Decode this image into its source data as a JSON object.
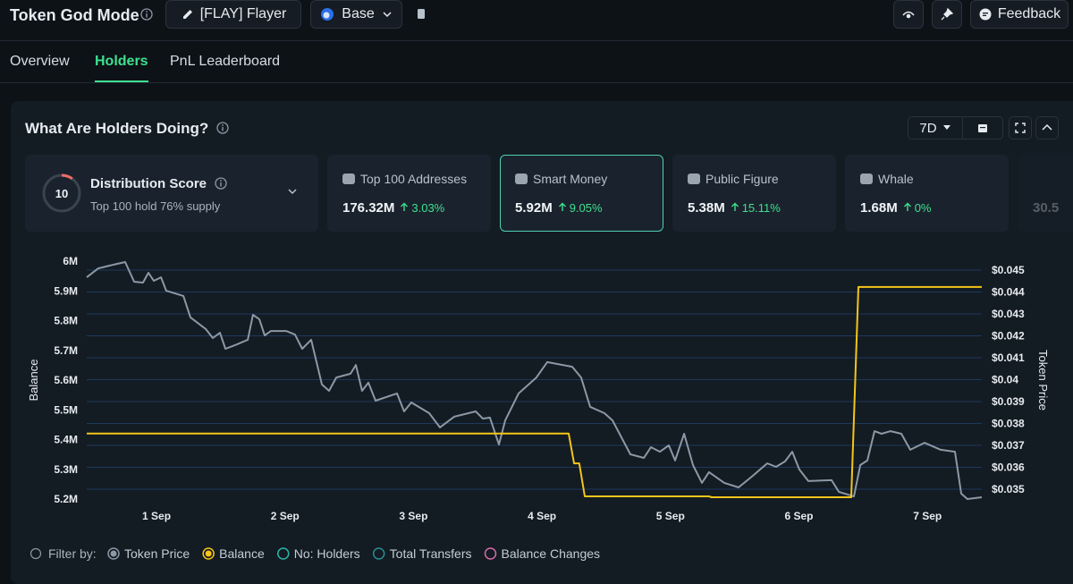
{
  "header": {
    "title": "Token God Mode",
    "token": "[FLAY] Flayer",
    "chain": "Base",
    "feedback": "Feedback"
  },
  "tabs": {
    "items": [
      "Overview",
      "Holders",
      "PnL Leaderboard"
    ],
    "active": 1
  },
  "panel": {
    "title": "What Are Holders Doing?",
    "range": "7D"
  },
  "score": {
    "value": 10,
    "title": "Distribution Score",
    "subtitle": "Top 100 hold 76% supply"
  },
  "cards": [
    {
      "label": "Top 100 Addresses",
      "value": "176.32M",
      "change": "3.03%"
    },
    {
      "label": "Smart Money",
      "value": "5.92M",
      "change": "9.05%"
    },
    {
      "label": "Public Figure",
      "value": "5.38M",
      "change": "15.11%"
    },
    {
      "label": "Whale",
      "value": "1.68M",
      "change": "0%"
    },
    {
      "value": "30.5"
    }
  ],
  "selected_card": 1,
  "chart_data": {
    "type": "line",
    "ylabel": "Balance",
    "y2label": "Token Price",
    "xlim": [
      0.457,
      7.423
    ],
    "xticks": [
      {
        "value": 1,
        "label": "1 Sep"
      },
      {
        "value": 2,
        "label": "2 Sep"
      },
      {
        "value": 3,
        "label": "3 Sep"
      },
      {
        "value": 4,
        "label": "4 Sep"
      },
      {
        "value": 5,
        "label": "5 Sep"
      },
      {
        "value": 6,
        "label": "6 Sep"
      },
      {
        "value": 7,
        "label": "7 Sep"
      }
    ],
    "ylim": [
      5200000,
      6000000
    ],
    "yticks": [
      {
        "value": 5200000,
        "label": "5.2M"
      },
      {
        "value": 5300000,
        "label": "5.3M"
      },
      {
        "value": 5400000,
        "label": "5.4M"
      },
      {
        "value": 5500000,
        "label": "5.5M"
      },
      {
        "value": 5600000,
        "label": "5.6M"
      },
      {
        "value": 5700000,
        "label": "5.7M"
      },
      {
        "value": 5800000,
        "label": "5.8M"
      },
      {
        "value": 5900000,
        "label": "5.9M"
      },
      {
        "value": 6000000,
        "label": "6M"
      }
    ],
    "y2lim": [
      0.03455,
      0.04541
    ],
    "y2ticks": [
      {
        "value": 0.035,
        "label": "$0.035"
      },
      {
        "value": 0.036,
        "label": "$0.036"
      },
      {
        "value": 0.037,
        "label": "$0.037"
      },
      {
        "value": 0.038,
        "label": "$0.038"
      },
      {
        "value": 0.039,
        "label": "$0.039"
      },
      {
        "value": 0.04,
        "label": "$0.04"
      },
      {
        "value": 0.041,
        "label": "$0.041"
      },
      {
        "value": 0.042,
        "label": "$0.042"
      },
      {
        "value": 0.043,
        "label": "$0.043"
      },
      {
        "value": 0.044,
        "label": "$0.044"
      },
      {
        "value": 0.045,
        "label": "$0.045"
      }
    ],
    "grid": true,
    "series": [
      {
        "name": "Token Price",
        "color": "#8c98a5",
        "axis": "y2",
        "x": [
          0.457,
          0.547,
          0.631,
          0.756,
          0.826,
          0.895,
          0.937,
          0.979,
          1.035,
          1.076,
          1.209,
          1.264,
          1.383,
          1.438,
          1.494,
          1.536,
          1.626,
          1.71,
          1.751,
          1.8,
          1.842,
          1.891,
          2.009,
          2.078,
          2.134,
          2.204,
          2.287,
          2.343,
          2.399,
          2.51,
          2.552,
          2.6,
          2.649,
          2.705,
          2.872,
          2.927,
          2.983,
          3.122,
          3.206,
          3.317,
          3.484,
          3.54,
          3.595,
          3.665,
          3.714,
          3.818,
          3.957,
          4.041,
          4.236,
          4.305,
          4.375,
          4.486,
          4.549,
          4.688,
          4.793,
          4.848,
          4.918,
          4.987,
          5.036,
          5.106,
          5.175,
          5.245,
          5.3,
          5.419,
          5.53,
          5.641,
          5.753,
          5.822,
          5.892,
          5.948,
          6.003,
          6.073,
          6.254,
          6.31,
          6.428,
          6.477,
          6.532,
          6.588,
          6.643,
          6.713,
          6.797,
          6.866,
          6.977,
          7.103,
          7.214,
          7.263,
          7.311,
          7.423
        ],
        "values": [
          0.04467,
          0.04508,
          0.0452,
          0.04537,
          0.04447,
          0.04443,
          0.04488,
          0.04451,
          0.04467,
          0.04406,
          0.04382,
          0.04284,
          0.04231,
          0.0419,
          0.04214,
          0.04141,
          0.04161,
          0.04182,
          0.04296,
          0.04276,
          0.04202,
          0.04222,
          0.04222,
          0.04206,
          0.04141,
          0.04182,
          0.03978,
          0.03949,
          0.0401,
          0.04027,
          0.04067,
          0.03949,
          0.03986,
          0.03904,
          0.03937,
          0.03855,
          0.03896,
          0.03847,
          0.03782,
          0.03831,
          0.03855,
          0.03822,
          0.03827,
          0.03704,
          0.03814,
          0.03937,
          0.0401,
          0.0408,
          0.04059,
          0.0401,
          0.03876,
          0.03847,
          0.03814,
          0.03659,
          0.03643,
          0.03692,
          0.03671,
          0.037,
          0.03631,
          0.03753,
          0.0361,
          0.03529,
          0.03578,
          0.03529,
          0.03508,
          0.03561,
          0.03618,
          0.03602,
          0.03627,
          0.03671,
          0.0359,
          0.03537,
          0.03541,
          0.03488,
          0.03467,
          0.0361,
          0.03631,
          0.03765,
          0.03753,
          0.03765,
          0.03753,
          0.0368,
          0.03712,
          0.0368,
          0.03671,
          0.0348,
          0.03455,
          0.03463
        ]
      },
      {
        "name": "Balance",
        "color": "#f5c518",
        "x": [
          0.457,
          4.208,
          4.25,
          4.29,
          4.333,
          5.3,
          5.32,
          6.407,
          6.463,
          7.423
        ],
        "values": [
          5420000,
          5420000,
          5320000,
          5320000,
          5209000,
          5209000,
          5206000,
          5206000,
          5913000,
          5913000
        ]
      }
    ],
    "filter_label": "Filter by:",
    "filters": [
      {
        "name": "No: Holders",
        "color": "#2bb5a8"
      },
      {
        "name": "Total Transfers",
        "color": "#2a8c96"
      },
      {
        "name": "Balance Changes",
        "color": "#d86ba8"
      }
    ]
  }
}
